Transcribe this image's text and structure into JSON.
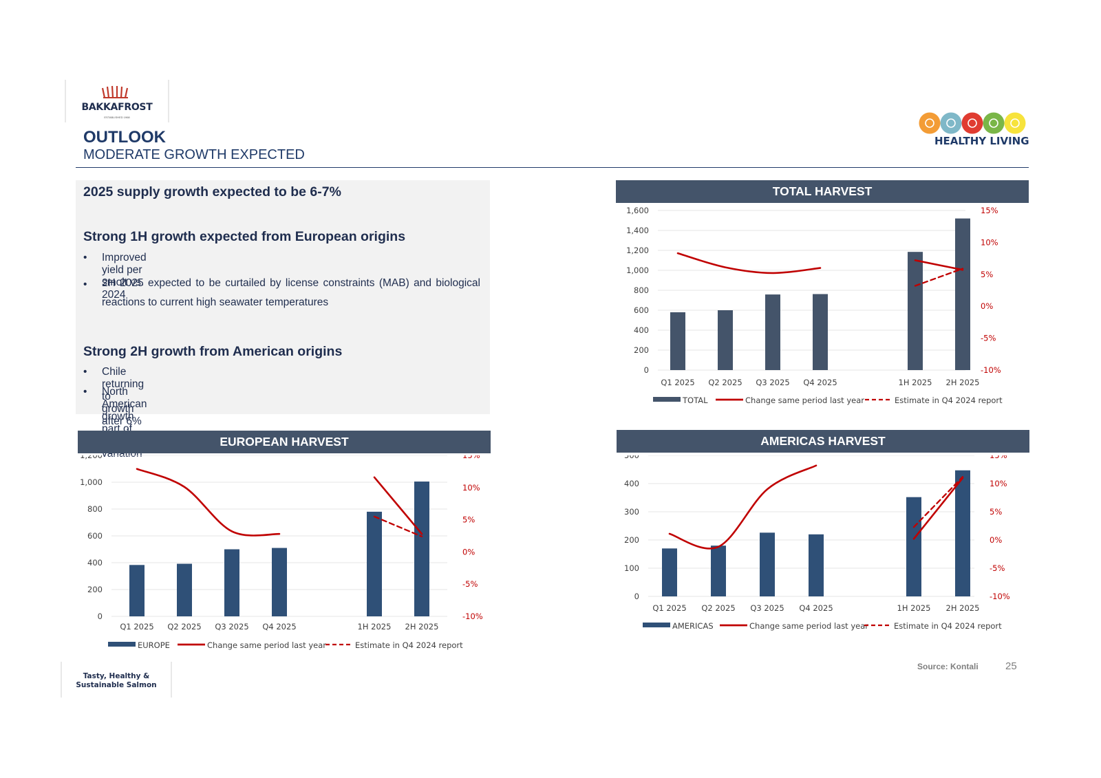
{
  "logo": {
    "name": "BAKKAFROST",
    "sub": "ESTABLISHED 1968"
  },
  "header": {
    "title": "OUTLOOK",
    "subtitle": "MODERATE GROWTH EXPECTED"
  },
  "healthy_living": {
    "label": "HEALTHY LIVING",
    "icons": [
      "fish-icon",
      "presentation-icon",
      "people-icon",
      "shell-icon",
      "handshake-icon"
    ],
    "colors": [
      "#f39c35",
      "#7fb8c8",
      "#e03c31",
      "#7ab648",
      "#f7e33c"
    ]
  },
  "textbox": {
    "headline": "2025 supply growth expected to be 6-7%",
    "section1": {
      "heading": "Strong 1H growth expected from European origins",
      "bullets": [
        "Improved yield per smolt vs. 2024",
        "2H 2025 expected to be curtailed by license constraints (MAB) and biological reactions to current high seawater temperatures"
      ]
    },
    "section2": {
      "heading": "Strong 2H growth from American origins",
      "bullets": [
        "Chile returning to growth after 6% drop in 2024",
        "North American growth part of normal variation"
      ]
    },
    "bullet_char": "•"
  },
  "chart_data": [
    {
      "id": "total",
      "type": "bar",
      "title": "TOTAL HARVEST",
      "categories": [
        "Q1 2025",
        "Q2 2025",
        "Q3 2025",
        "Q4 2025",
        "1H 2025",
        "2H 2025"
      ],
      "series": [
        {
          "name": "TOTAL",
          "type": "bar",
          "axis": "left",
          "values": [
            580,
            600,
            758,
            762,
            1185,
            1520
          ]
        },
        {
          "name": "Change same period last year",
          "type": "line",
          "axis": "right",
          "values": [
            8.3,
            6.1,
            5.2,
            6.0,
            7.2,
            5.7
          ],
          "segments": [
            [
              0,
              3
            ],
            [
              4,
              5
            ]
          ]
        },
        {
          "name": "Estimate in Q4 2024 report",
          "type": "line-dashed",
          "axis": "right",
          "values": [
            null,
            null,
            null,
            null,
            3.2,
            5.9
          ],
          "segments": [
            [
              4,
              5
            ]
          ]
        }
      ],
      "yLeft": {
        "min": 0,
        "max": 1600,
        "step": 200,
        "format": "thousands"
      },
      "yRight": {
        "min": -10,
        "max": 15,
        "step": 5,
        "format": "pct"
      },
      "colors": {
        "bar": "#44546a",
        "line": "#c00000"
      }
    },
    {
      "id": "europe",
      "type": "bar",
      "title": "EUROPEAN HARVEST",
      "categories": [
        "Q1 2025",
        "Q2 2025",
        "Q3 2025",
        "Q4 2025",
        "1H 2025",
        "2H 2025"
      ],
      "series": [
        {
          "name": "EUROPE",
          "type": "bar",
          "axis": "left",
          "values": [
            383,
            392,
            500,
            510,
            780,
            1005
          ]
        },
        {
          "name": "Change same period last year",
          "type": "line",
          "axis": "right",
          "values": [
            12.9,
            10.1,
            3.2,
            2.8,
            11.6,
            2.8
          ],
          "segments": [
            [
              0,
              3
            ],
            [
              4,
              5
            ]
          ]
        },
        {
          "name": "Estimate in Q4 2024 report",
          "type": "line-dashed",
          "axis": "right",
          "values": [
            null,
            null,
            null,
            null,
            5.5,
            2.4
          ],
          "segments": [
            [
              4,
              5
            ]
          ]
        }
      ],
      "yLeft": {
        "min": 0,
        "max": 1200,
        "step": 200,
        "format": "thousands"
      },
      "yRight": {
        "min": -10,
        "max": 15,
        "step": 5,
        "format": "pct"
      },
      "colors": {
        "bar": "#2f5077",
        "line": "#c00000"
      }
    },
    {
      "id": "americas",
      "type": "bar",
      "title": "AMERICAS HARVEST",
      "categories": [
        "Q1 2025",
        "Q2 2025",
        "Q3 2025",
        "Q4 2025",
        "1H 2025",
        "2H 2025"
      ],
      "series": [
        {
          "name": "AMERICAS",
          "type": "bar",
          "axis": "left",
          "values": [
            170,
            180,
            226,
            220,
            352,
            447
          ]
        },
        {
          "name": "Change same period last year",
          "type": "line",
          "axis": "right",
          "values": [
            1.1,
            -1.2,
            9.0,
            13.2,
            0.2,
            11.0
          ],
          "segments": [
            [
              0,
              3
            ],
            [
              4,
              5
            ]
          ]
        },
        {
          "name": "Estimate in Q4 2024 report",
          "type": "line-dashed",
          "axis": "right",
          "values": [
            null,
            null,
            null,
            null,
            2.3,
            11.2
          ],
          "segments": [
            [
              4,
              5
            ]
          ]
        }
      ],
      "yLeft": {
        "min": 0,
        "max": 500,
        "step": 100,
        "format": "thousands"
      },
      "yRight": {
        "min": -10,
        "max": 15,
        "step": 5,
        "format": "pct"
      },
      "colors": {
        "bar": "#2f5077",
        "line": "#c00000"
      }
    }
  ],
  "footer": {
    "source": "Source: Kontali",
    "page": "25",
    "tagline_line1": "Tasty, Healthy &",
    "tagline_line2": "Sustainable Salmon"
  }
}
